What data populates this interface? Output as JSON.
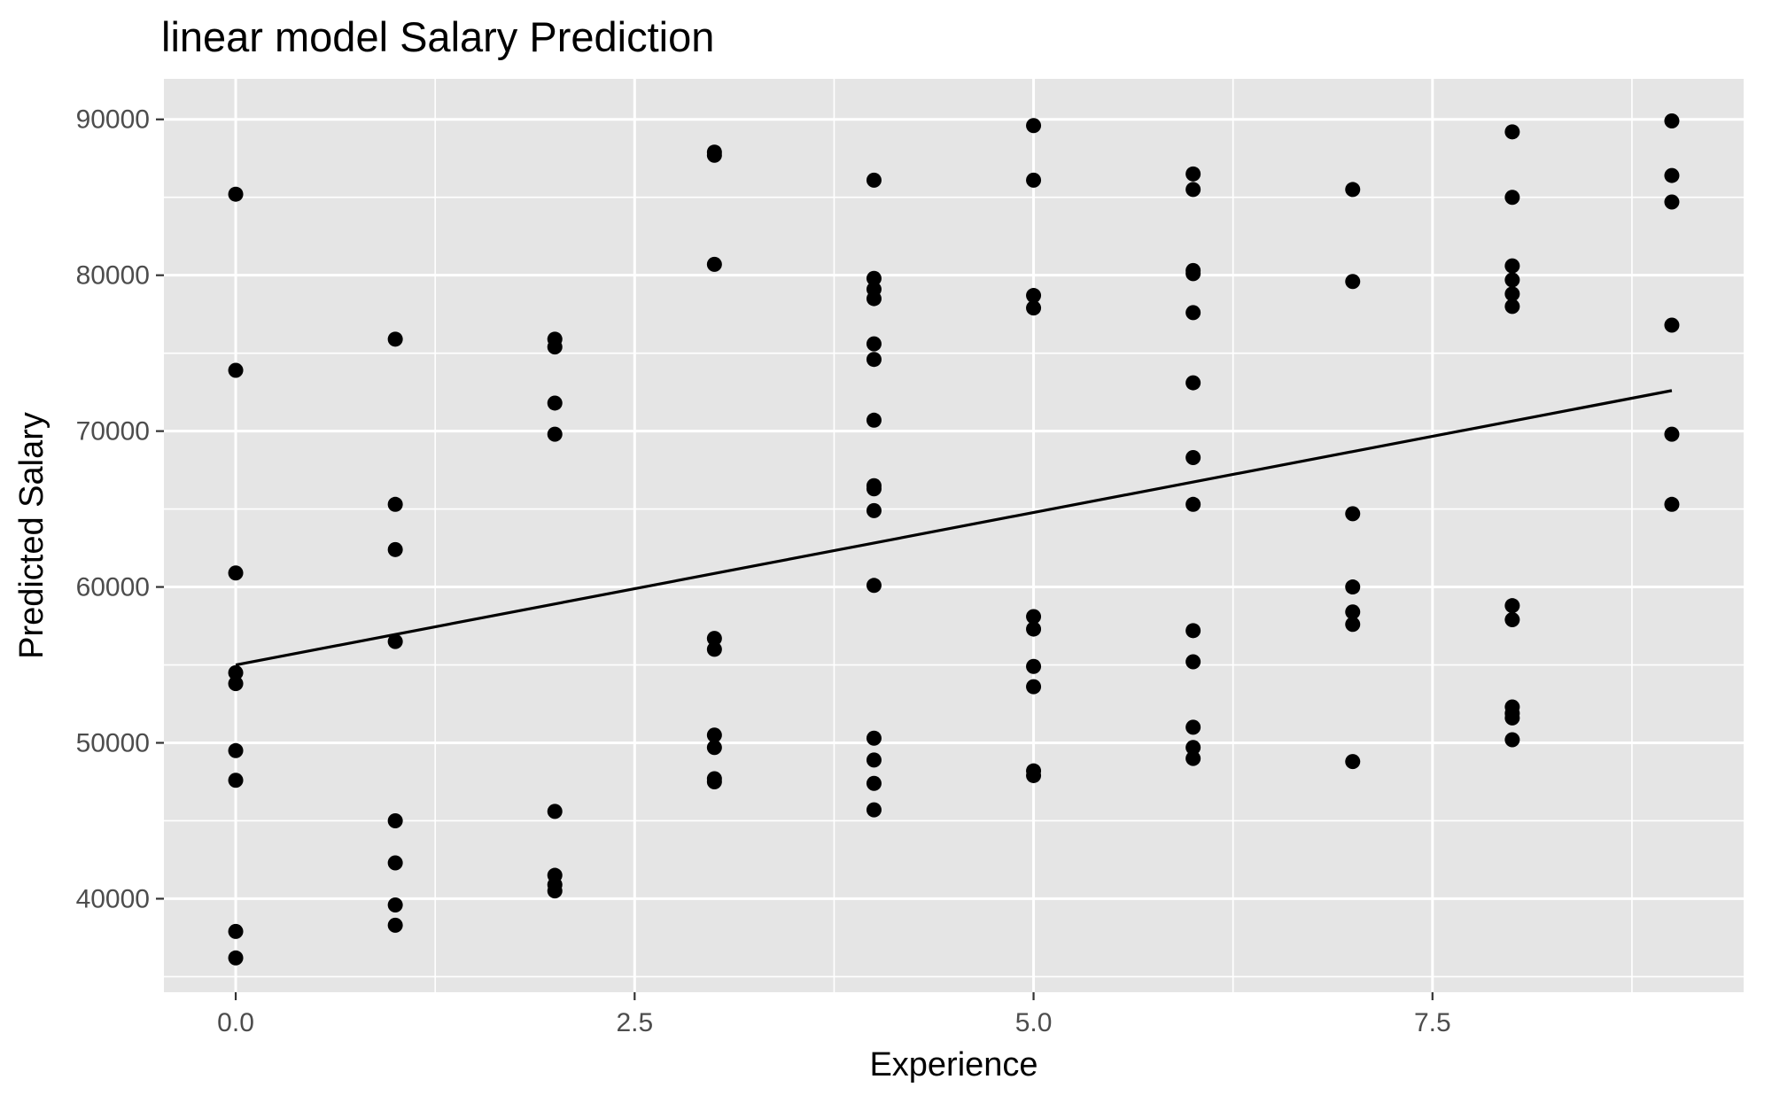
{
  "chart_data": {
    "type": "scatter",
    "title": "linear model Salary Prediction",
    "xlabel": "Experience",
    "ylabel": "Predicted Salary",
    "xlim": [
      -0.45,
      9.45
    ],
    "ylim": [
      34000,
      92600
    ],
    "x_ticks": [
      0,
      2.5,
      5,
      7.5
    ],
    "x_tick_labels": [
      "0.0",
      "2.5",
      "5.0",
      "7.5"
    ],
    "y_ticks": [
      40000,
      50000,
      60000,
      70000,
      80000,
      90000
    ],
    "y_tick_labels": [
      "40000",
      "50000",
      "60000",
      "70000",
      "80000",
      "90000"
    ],
    "grid": true,
    "points": [
      [
        0,
        85200
      ],
      [
        0,
        73900
      ],
      [
        0,
        60900
      ],
      [
        0,
        54500
      ],
      [
        0,
        53800
      ],
      [
        0,
        49500
      ],
      [
        0,
        47600
      ],
      [
        0,
        37900
      ],
      [
        0,
        36200
      ],
      [
        1,
        75900
      ],
      [
        1,
        65300
      ],
      [
        1,
        62400
      ],
      [
        1,
        56500
      ],
      [
        1,
        45000
      ],
      [
        1,
        42300
      ],
      [
        1,
        39600
      ],
      [
        1,
        38300
      ],
      [
        2,
        75900
      ],
      [
        2,
        75400
      ],
      [
        2,
        71800
      ],
      [
        2,
        69800
      ],
      [
        2,
        45600
      ],
      [
        2,
        41500
      ],
      [
        2,
        40900
      ],
      [
        2,
        40500
      ],
      [
        3,
        87900
      ],
      [
        3,
        87700
      ],
      [
        3,
        80700
      ],
      [
        3,
        56700
      ],
      [
        3,
        56000
      ],
      [
        3,
        50500
      ],
      [
        3,
        49700
      ],
      [
        3,
        47700
      ],
      [
        3,
        47500
      ],
      [
        4,
        86100
      ],
      [
        4,
        79800
      ],
      [
        4,
        79100
      ],
      [
        4,
        78500
      ],
      [
        4,
        75600
      ],
      [
        4,
        74600
      ],
      [
        4,
        70700
      ],
      [
        4,
        66500
      ],
      [
        4,
        66300
      ],
      [
        4,
        64900
      ],
      [
        4,
        60100
      ],
      [
        4,
        50300
      ],
      [
        4,
        48900
      ],
      [
        4,
        47400
      ],
      [
        4,
        45700
      ],
      [
        5,
        89600
      ],
      [
        5,
        86100
      ],
      [
        5,
        78700
      ],
      [
        5,
        77900
      ],
      [
        5,
        58100
      ],
      [
        5,
        57300
      ],
      [
        5,
        54900
      ],
      [
        5,
        53600
      ],
      [
        5,
        48200
      ],
      [
        5,
        47900
      ],
      [
        6,
        86500
      ],
      [
        6,
        85500
      ],
      [
        6,
        80300
      ],
      [
        6,
        80100
      ],
      [
        6,
        77600
      ],
      [
        6,
        73100
      ],
      [
        6,
        68300
      ],
      [
        6,
        65300
      ],
      [
        6,
        57200
      ],
      [
        6,
        55200
      ],
      [
        6,
        51000
      ],
      [
        6,
        49700
      ],
      [
        6,
        49000
      ],
      [
        7,
        85500
      ],
      [
        7,
        79600
      ],
      [
        7,
        64700
      ],
      [
        7,
        60000
      ],
      [
        7,
        58400
      ],
      [
        7,
        57600
      ],
      [
        7,
        48800
      ],
      [
        8,
        89200
      ],
      [
        8,
        85000
      ],
      [
        8,
        80600
      ],
      [
        8,
        79700
      ],
      [
        8,
        78800
      ],
      [
        8,
        78000
      ],
      [
        8,
        58800
      ],
      [
        8,
        57900
      ],
      [
        8,
        52300
      ],
      [
        8,
        51900
      ],
      [
        8,
        51600
      ],
      [
        8,
        50200
      ],
      [
        9,
        89900
      ],
      [
        9,
        86400
      ],
      [
        9,
        84700
      ],
      [
        9,
        76800
      ],
      [
        9,
        69800
      ],
      [
        9,
        65300
      ]
    ],
    "fit_line": {
      "x": [
        0,
        9
      ],
      "y": [
        55000,
        72600
      ]
    },
    "colors": {
      "panel": "#e5e5e5",
      "grid": "#ffffff",
      "point": "#000000",
      "line": "#000000",
      "tick_text": "#4d4d4d",
      "tick_mark": "#333333"
    }
  }
}
